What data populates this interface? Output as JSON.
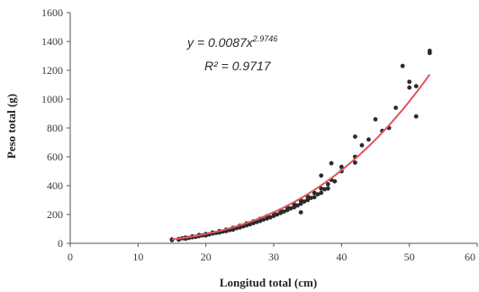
{
  "chart_data": {
    "type": "scatter",
    "title": "",
    "xlabel": "Longitud total (cm)",
    "ylabel": "Peso total (g)",
    "xlim": [
      0,
      60
    ],
    "ylim": [
      0,
      1600
    ],
    "x_ticks": [
      0,
      10,
      20,
      30,
      40,
      50,
      60
    ],
    "y_ticks": [
      0,
      200,
      400,
      600,
      800,
      1000,
      1200,
      1400,
      1600
    ],
    "grid": false,
    "legend": "none",
    "colors": {
      "points": "#2b2b2b",
      "trendline": "#e2555a"
    },
    "annotations": {
      "equation": "y = 0.0087x",
      "equation_exponent": "2.9746",
      "r_squared": "R² = 0.9717"
    },
    "trendline": {
      "type": "power",
      "a": 0.0087,
      "b": 2.9746,
      "x_range": [
        15,
        53
      ]
    },
    "series": [
      {
        "values": [
          {
            "x": 15,
            "y": 22
          },
          {
            "x": 15,
            "y": 27
          },
          {
            "x": 16,
            "y": 25
          },
          {
            "x": 16,
            "y": 30
          },
          {
            "x": 16.5,
            "y": 35
          },
          {
            "x": 17,
            "y": 32
          },
          {
            "x": 17,
            "y": 40
          },
          {
            "x": 17.5,
            "y": 38
          },
          {
            "x": 18,
            "y": 42
          },
          {
            "x": 18,
            "y": 48
          },
          {
            "x": 18.5,
            "y": 45
          },
          {
            "x": 19,
            "y": 50
          },
          {
            "x": 19,
            "y": 58
          },
          {
            "x": 19.5,
            "y": 55
          },
          {
            "x": 20,
            "y": 55
          },
          {
            "x": 20,
            "y": 65
          },
          {
            "x": 20.5,
            "y": 62
          },
          {
            "x": 21,
            "y": 68
          },
          {
            "x": 21,
            "y": 75
          },
          {
            "x": 21.5,
            "y": 72
          },
          {
            "x": 22,
            "y": 75
          },
          {
            "x": 22,
            "y": 85
          },
          {
            "x": 22.5,
            "y": 82
          },
          {
            "x": 23,
            "y": 85
          },
          {
            "x": 23,
            "y": 95
          },
          {
            "x": 23.5,
            "y": 92
          },
          {
            "x": 24,
            "y": 95
          },
          {
            "x": 24,
            "y": 108
          },
          {
            "x": 24.5,
            "y": 105
          },
          {
            "x": 25,
            "y": 110
          },
          {
            "x": 25,
            "y": 122
          },
          {
            "x": 25.5,
            "y": 118
          },
          {
            "x": 26,
            "y": 125
          },
          {
            "x": 26,
            "y": 138
          },
          {
            "x": 26.5,
            "y": 132
          },
          {
            "x": 27,
            "y": 140
          },
          {
            "x": 27,
            "y": 152
          },
          {
            "x": 27.5,
            "y": 148
          },
          {
            "x": 28,
            "y": 155
          },
          {
            "x": 28,
            "y": 170
          },
          {
            "x": 28.5,
            "y": 165
          },
          {
            "x": 29,
            "y": 172
          },
          {
            "x": 29,
            "y": 188
          },
          {
            "x": 29.5,
            "y": 180
          },
          {
            "x": 30,
            "y": 190
          },
          {
            "x": 30,
            "y": 208
          },
          {
            "x": 30.5,
            "y": 200
          },
          {
            "x": 31,
            "y": 210
          },
          {
            "x": 31,
            "y": 228
          },
          {
            "x": 31.5,
            "y": 220
          },
          {
            "x": 32,
            "y": 230
          },
          {
            "x": 32,
            "y": 250
          },
          {
            "x": 32.5,
            "y": 242
          },
          {
            "x": 33,
            "y": 250
          },
          {
            "x": 33,
            "y": 272
          },
          {
            "x": 33.5,
            "y": 262
          },
          {
            "x": 34,
            "y": 215
          },
          {
            "x": 34,
            "y": 275
          },
          {
            "x": 34,
            "y": 298
          },
          {
            "x": 34.5,
            "y": 290
          },
          {
            "x": 35,
            "y": 300
          },
          {
            "x": 35,
            "y": 325
          },
          {
            "x": 35.5,
            "y": 315
          },
          {
            "x": 36,
            "y": 320
          },
          {
            "x": 36,
            "y": 350
          },
          {
            "x": 36.5,
            "y": 340
          },
          {
            "x": 37,
            "y": 350
          },
          {
            "x": 37,
            "y": 380
          },
          {
            "x": 37,
            "y": 470
          },
          {
            "x": 37.5,
            "y": 375
          },
          {
            "x": 38,
            "y": 380
          },
          {
            "x": 38,
            "y": 410
          },
          {
            "x": 38.5,
            "y": 440
          },
          {
            "x": 38.5,
            "y": 555
          },
          {
            "x": 39,
            "y": 430
          },
          {
            "x": 40,
            "y": 500
          },
          {
            "x": 40,
            "y": 530
          },
          {
            "x": 42,
            "y": 560
          },
          {
            "x": 42,
            "y": 600
          },
          {
            "x": 42,
            "y": 740
          },
          {
            "x": 43,
            "y": 680
          },
          {
            "x": 44,
            "y": 720
          },
          {
            "x": 45,
            "y": 860
          },
          {
            "x": 46,
            "y": 780
          },
          {
            "x": 47,
            "y": 800
          },
          {
            "x": 48,
            "y": 940
          },
          {
            "x": 49,
            "y": 1230
          },
          {
            "x": 50,
            "y": 1080
          },
          {
            "x": 50,
            "y": 1120
          },
          {
            "x": 51,
            "y": 880
          },
          {
            "x": 51,
            "y": 1090
          },
          {
            "x": 53,
            "y": 1320
          },
          {
            "x": 53,
            "y": 1335
          }
        ]
      }
    ]
  }
}
